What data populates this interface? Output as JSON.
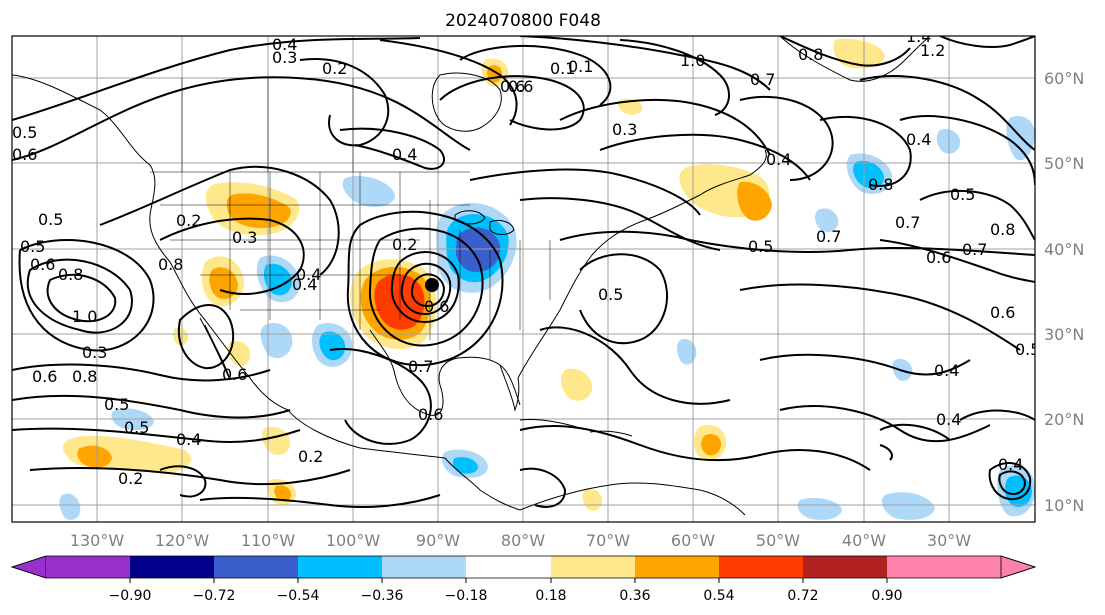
{
  "title": "2024070800 F048",
  "map": {
    "lon_labels": [
      "130°W",
      "120°W",
      "110°W",
      "100°W",
      "90°W",
      "80°W",
      "70°W",
      "60°W",
      "50°W",
      "40°W",
      "30°W"
    ],
    "lat_labels": [
      "60°N",
      "50°N",
      "40°N",
      "30°N",
      "20°N",
      "10°N"
    ],
    "extent": {
      "lon": [
        -136,
        -15
      ],
      "lat": [
        8,
        65
      ]
    },
    "gridline_color": "#a0a0a0",
    "contour_color": "#000000",
    "contour_labels": [
      "0.4",
      "0.3",
      "0.2",
      "0.1",
      "1.0",
      "0.8",
      "0.7",
      "0.6",
      "0.5",
      "0.3",
      "0.4",
      "0.6",
      "0.8",
      "0.5",
      "0.6",
      "0.2",
      "0.2",
      "0.3",
      "0.4",
      "0.5",
      "0.8",
      "1.0",
      "0.3",
      "0.6",
      "0.8",
      "0.5",
      "0.4",
      "0.2",
      "0.2",
      "0.6",
      "0.4",
      "0.5",
      "0.7",
      "0.6",
      "0.7",
      "0.8",
      "0.5",
      "0.6",
      "0.7",
      "0.5",
      "0.4",
      "0.4",
      "0.4",
      "0.4",
      "0.5",
      "0.6",
      "0.7",
      "0.8",
      "0.6",
      "0.5",
      "0.6",
      "0.1",
      "0.4",
      "1.4",
      "1.2"
    ]
  },
  "colorbar": {
    "tick_labels": [
      "−0.90",
      "−0.72",
      "−0.54",
      "−0.36",
      "−0.18",
      "0.18",
      "0.36",
      "0.54",
      "0.72",
      "0.90"
    ],
    "colors": [
      "#9932cc",
      "#00008b",
      "#3a5fcd",
      "#00bfff",
      "#add8f8",
      "#ffffff",
      "#ffe88c",
      "#ffa500",
      "#ff3c00",
      "#b22222",
      "#ff82ab"
    ]
  }
}
